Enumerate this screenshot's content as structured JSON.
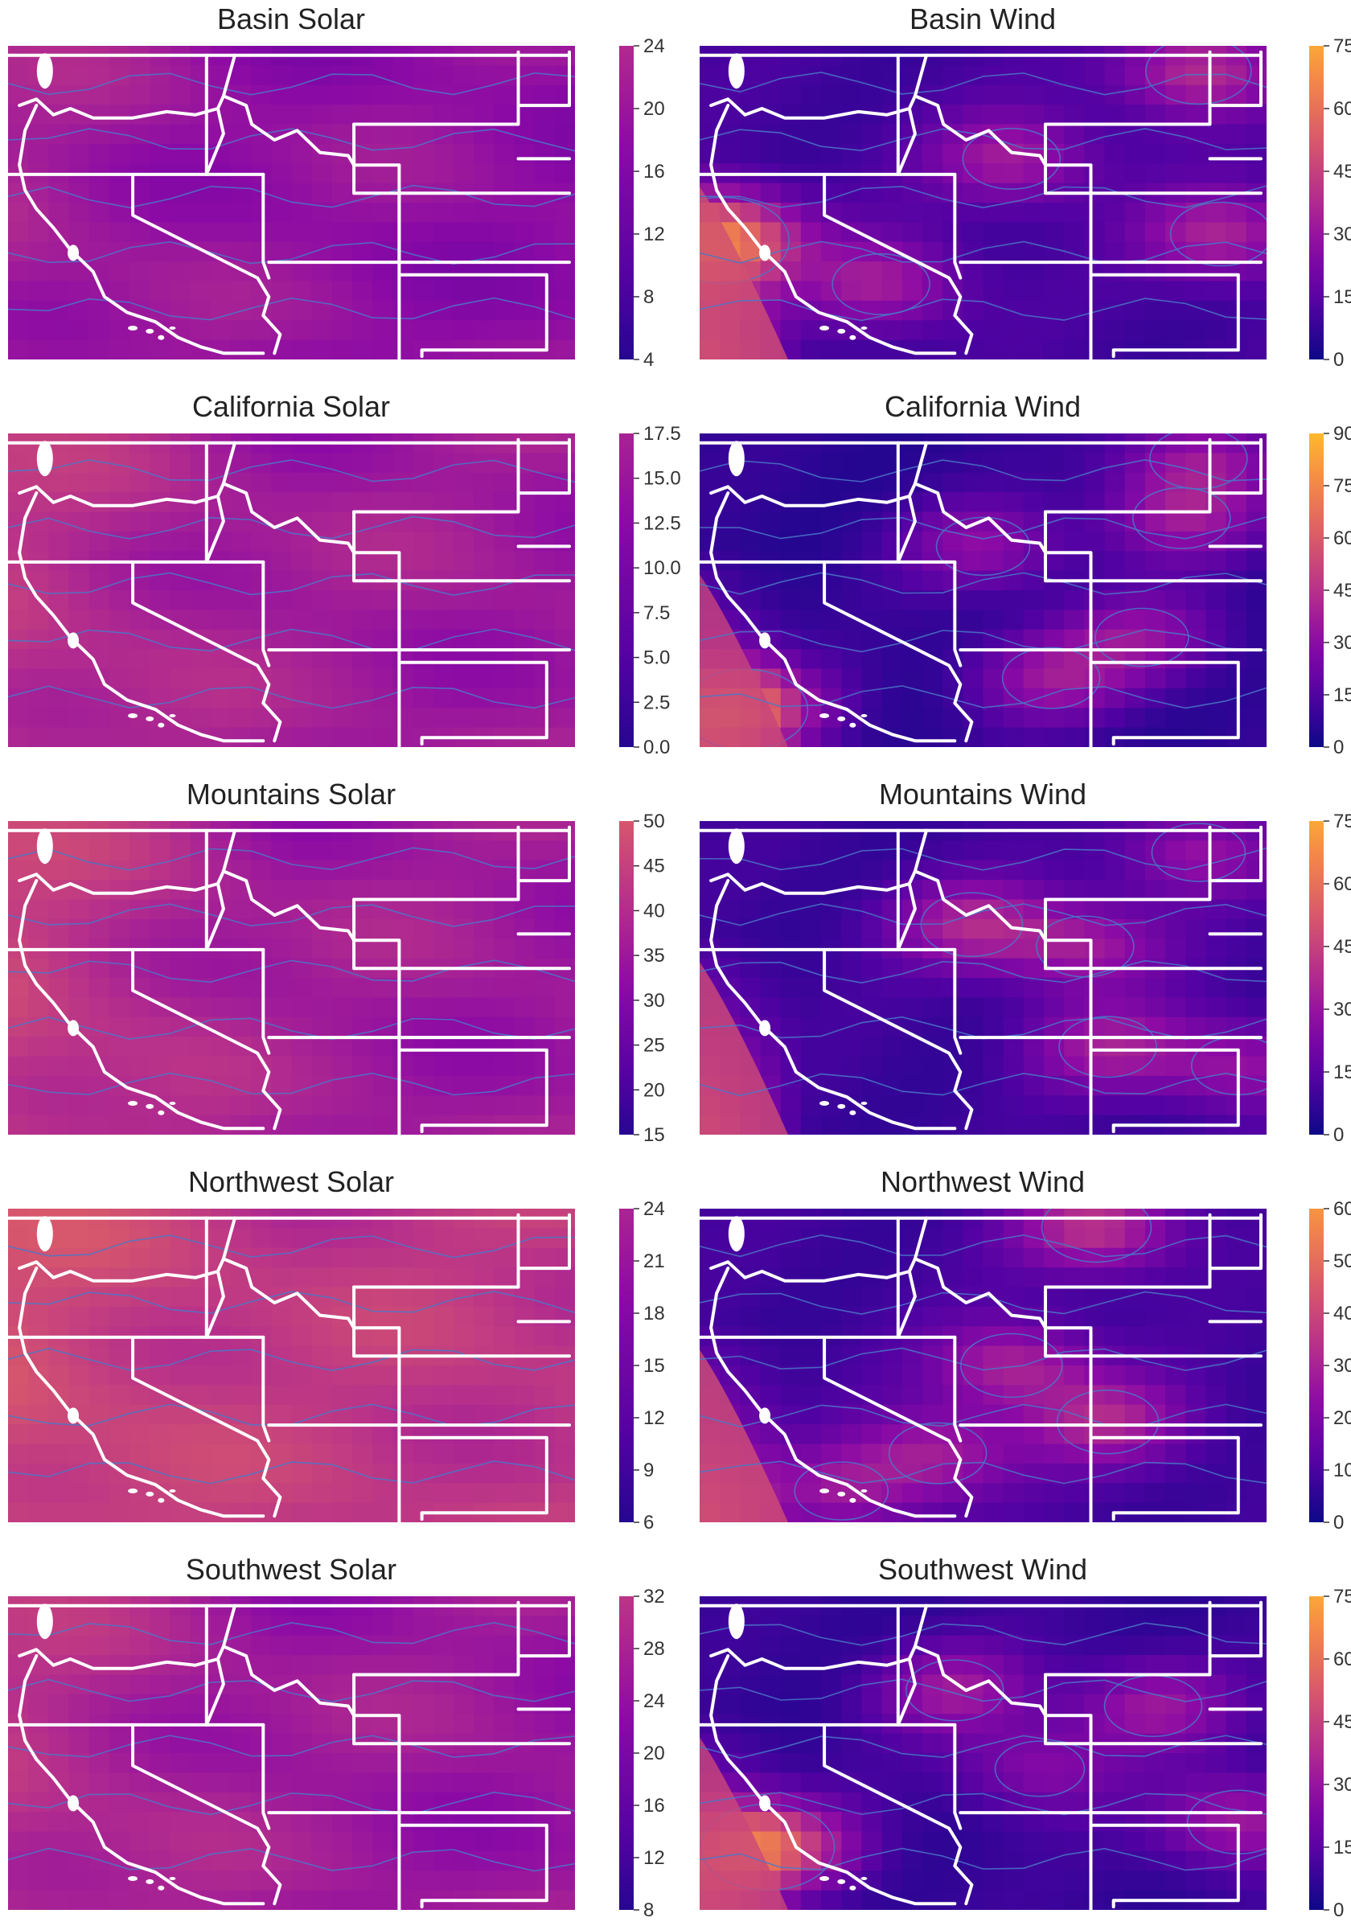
{
  "colormap": "plasma",
  "panels": [
    {
      "id": "basin-solar",
      "title": "Basin Solar",
      "kind": "solar",
      "cmin": 4,
      "cmax": 24,
      "ticks": [
        "4",
        "8",
        "12",
        "16",
        "20",
        "24"
      ],
      "base": 10,
      "levels": [
        0.55,
        0.58
      ],
      "west": 0.62,
      "hot": []
    },
    {
      "id": "basin-wind",
      "title": "Basin Wind",
      "kind": "wind",
      "cmin": 0,
      "cmax": 75,
      "ticks": [
        "0",
        "15",
        "30",
        "45",
        "60",
        "75"
      ],
      "base": 8,
      "levels": [
        0.5
      ],
      "west": 1.0,
      "hot": [
        [
          0.04,
          0.62,
          0.9
        ],
        [
          0.88,
          0.08,
          0.55
        ],
        [
          0.55,
          0.36,
          0.45
        ],
        [
          0.92,
          0.6,
          0.5
        ],
        [
          0.32,
          0.76,
          0.45
        ]
      ]
    },
    {
      "id": "california-solar",
      "title": "California Solar",
      "kind": "solar",
      "cmin": 0,
      "cmax": 17.5,
      "ticks": [
        "0.0",
        "2.5",
        "5.0",
        "7.5",
        "10.0",
        "12.5",
        "15.0",
        "17.5"
      ],
      "base": 6,
      "levels": [
        0.5,
        0.6
      ],
      "west": 0.9,
      "hot": []
    },
    {
      "id": "california-wind",
      "title": "California Wind",
      "kind": "wind",
      "cmin": 0,
      "cmax": 90,
      "ticks": [
        "0",
        "15",
        "30",
        "45",
        "60",
        "75",
        "90"
      ],
      "base": 6,
      "levels": [
        0.45
      ],
      "west": 1.0,
      "hot": [
        [
          0.08,
          0.88,
          0.8
        ],
        [
          0.88,
          0.08,
          0.45
        ],
        [
          0.85,
          0.27,
          0.45
        ],
        [
          0.62,
          0.78,
          0.45
        ],
        [
          0.78,
          0.65,
          0.4
        ],
        [
          0.5,
          0.36,
          0.4
        ]
      ]
    },
    {
      "id": "mountains-solar",
      "title": "Mountains Solar",
      "kind": "solar",
      "cmin": 15,
      "cmax": 50,
      "ticks": [
        "15",
        "20",
        "25",
        "30",
        "35",
        "40",
        "45",
        "50"
      ],
      "base": 27,
      "levels": [
        0.5,
        0.62
      ],
      "west": 1.3,
      "hot": []
    },
    {
      "id": "mountains-wind",
      "title": "Mountains Wind",
      "kind": "wind",
      "cmin": 0,
      "cmax": 75,
      "ticks": [
        "0",
        "15",
        "30",
        "45",
        "60",
        "75"
      ],
      "base": 7,
      "levels": [
        0.5
      ],
      "west": 1.0,
      "hot": [
        [
          0.48,
          0.33,
          0.5
        ],
        [
          0.68,
          0.4,
          0.45
        ],
        [
          0.88,
          0.1,
          0.4
        ],
        [
          0.72,
          0.72,
          0.45
        ],
        [
          0.95,
          0.78,
          0.4
        ]
      ]
    },
    {
      "id": "northwest-solar",
      "title": "Northwest Solar",
      "kind": "solar",
      "cmin": 6,
      "cmax": 24,
      "ticks": [
        "6",
        "9",
        "12",
        "15",
        "18",
        "21",
        "24"
      ],
      "base": 14,
      "levels": [
        0.5,
        0.58,
        0.66
      ],
      "west": 0.7,
      "hot": []
    },
    {
      "id": "northwest-wind",
      "title": "Northwest Wind",
      "kind": "wind",
      "cmin": 0,
      "cmax": 60,
      "ticks": [
        "0",
        "10",
        "20",
        "30",
        "40",
        "50",
        "60"
      ],
      "base": 6,
      "levels": [
        0.45
      ],
      "west": 1.0,
      "hot": [
        [
          0.7,
          0.06,
          0.6
        ],
        [
          0.55,
          0.5,
          0.5
        ],
        [
          0.72,
          0.68,
          0.5
        ],
        [
          0.42,
          0.78,
          0.45
        ],
        [
          0.25,
          0.9,
          0.4
        ]
      ]
    },
    {
      "id": "southwest-solar",
      "title": "Southwest Solar",
      "kind": "solar",
      "cmin": 8,
      "cmax": 32,
      "ticks": [
        "8",
        "12",
        "16",
        "20",
        "24",
        "28",
        "32"
      ],
      "base": 16,
      "levels": [
        0.5,
        0.6
      ],
      "west": 0.9,
      "hot": []
    },
    {
      "id": "southwest-wind",
      "title": "Southwest Wind",
      "kind": "wind",
      "cmin": 0,
      "cmax": 75,
      "ticks": [
        "0",
        "15",
        "30",
        "45",
        "60",
        "75"
      ],
      "base": 6,
      "levels": [
        0.5
      ],
      "west": 1.0,
      "hot": [
        [
          0.12,
          0.8,
          0.9
        ],
        [
          0.45,
          0.3,
          0.45
        ],
        [
          0.8,
          0.35,
          0.45
        ],
        [
          0.95,
          0.72,
          0.5
        ],
        [
          0.6,
          0.55,
          0.35
        ]
      ]
    }
  ]
}
